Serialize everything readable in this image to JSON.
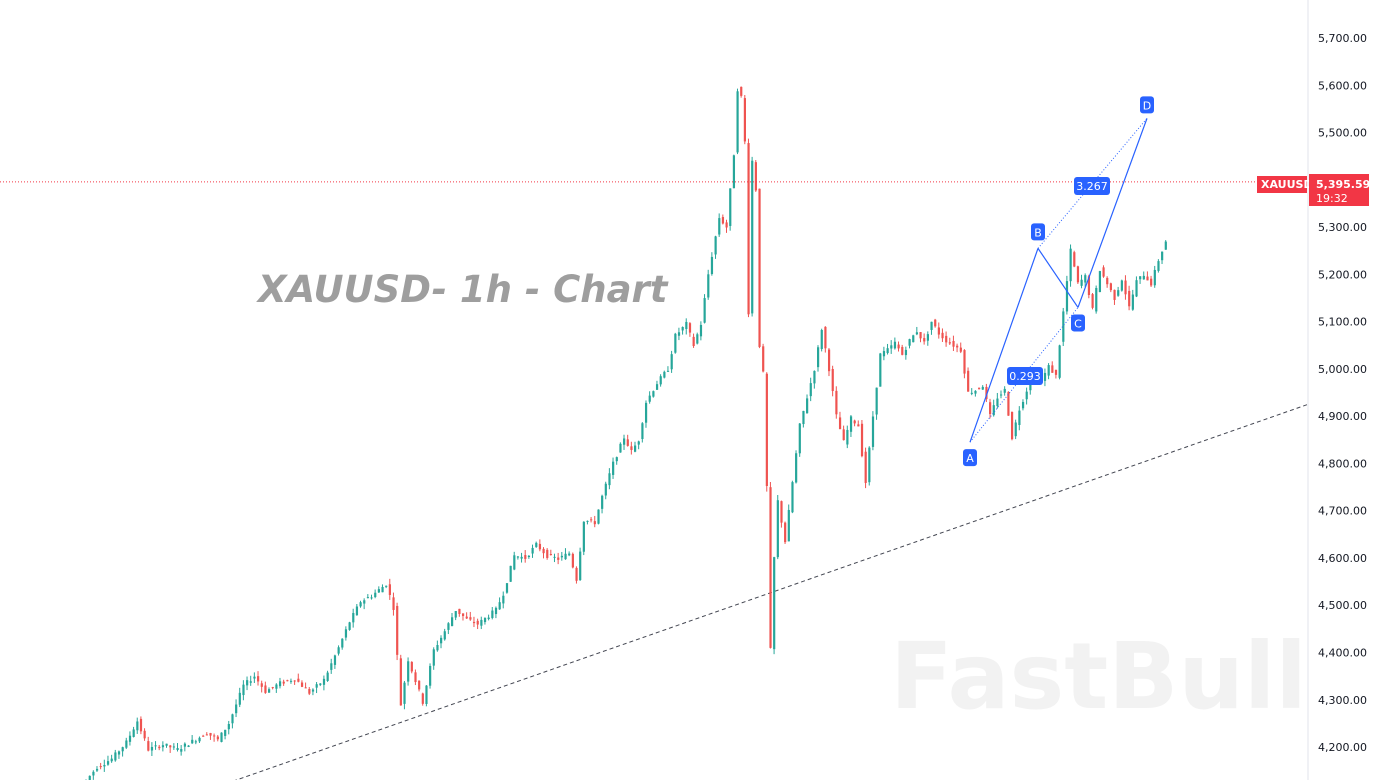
{
  "title": "XAUUSD- 1h - Chart",
  "watermark": "FastBull",
  "symbol": "XAUUSD",
  "current_price": "5,395.59",
  "countdown": "19:32",
  "colors": {
    "up": "#26a69a",
    "down": "#ef5350",
    "pattern": "#2962ff",
    "price_tag": "#f23645",
    "trendline": "#434651"
  },
  "y_axis": {
    "ticks": [
      "4,200.00",
      "4,300.00",
      "4,400.00",
      "4,500.00",
      "4,600.00",
      "4,700.00",
      "4,800.00",
      "4,900.00",
      "5,000.00",
      "5,100.00",
      "5,200.00",
      "5,300.00",
      "5,500.00",
      "5,600.00",
      "5,700.00"
    ],
    "tick_values": [
      4200,
      4300,
      4400,
      4500,
      4600,
      4700,
      4800,
      4900,
      5000,
      5100,
      5200,
      5300,
      5500,
      5600,
      5700
    ]
  },
  "chart_data": {
    "type": "candlestick",
    "title": "XAUUSD- 1h - Chart",
    "ylim": [
      4135,
      5785
    ],
    "grid": false,
    "price_line": 5395.59,
    "price_path": [
      [
        0,
        4120
      ],
      [
        4,
        4158
      ],
      [
        8,
        4175
      ],
      [
        12,
        4210
      ],
      [
        15,
        4255
      ],
      [
        18,
        4195
      ],
      [
        22,
        4205
      ],
      [
        26,
        4195
      ],
      [
        30,
        4212
      ],
      [
        34,
        4230
      ],
      [
        37,
        4215
      ],
      [
        40,
        4250
      ],
      [
        44,
        4330
      ],
      [
        47,
        4350
      ],
      [
        50,
        4318
      ],
      [
        54,
        4335
      ],
      [
        58,
        4345
      ],
      [
        62,
        4315
      ],
      [
        66,
        4342
      ],
      [
        70,
        4410
      ],
      [
        73,
        4465
      ],
      [
        76,
        4508
      ],
      [
        79,
        4520
      ],
      [
        83,
        4545
      ],
      [
        85,
        4495
      ],
      [
        87,
        4290
      ],
      [
        89,
        4385
      ],
      [
        91,
        4340
      ],
      [
        93,
        4295
      ],
      [
        96,
        4405
      ],
      [
        99,
        4445
      ],
      [
        102,
        4490
      ],
      [
        105,
        4470
      ],
      [
        108,
        4460
      ],
      [
        111,
        4478
      ],
      [
        113,
        4490
      ],
      [
        115,
        4525
      ],
      [
        118,
        4605
      ],
      [
        121,
        4600
      ],
      [
        124,
        4628
      ],
      [
        127,
        4605
      ],
      [
        130,
        4598
      ],
      [
        133,
        4610
      ],
      [
        135,
        4555
      ],
      [
        137,
        4680
      ],
      [
        140,
        4675
      ],
      [
        142,
        4730
      ],
      [
        145,
        4800
      ],
      [
        148,
        4855
      ],
      [
        150,
        4825
      ],
      [
        152,
        4850
      ],
      [
        154,
        4930
      ],
      [
        157,
        4970
      ],
      [
        160,
        5000
      ],
      [
        162,
        5070
      ],
      [
        165,
        5095
      ],
      [
        167,
        5050
      ],
      [
        169,
        5095
      ],
      [
        171,
        5200
      ],
      [
        174,
        5320
      ],
      [
        176,
        5300
      ],
      [
        178,
        5455
      ],
      [
        179,
        5592
      ],
      [
        180,
        5575
      ],
      [
        181,
        5480
      ],
      [
        182,
        5120
      ],
      [
        183,
        5440
      ],
      [
        184,
        5380
      ],
      [
        185,
        5050
      ],
      [
        186,
        4990
      ],
      [
        187,
        4750
      ],
      [
        188,
        4405
      ],
      [
        189,
        4600
      ],
      [
        190,
        4720
      ],
      [
        192,
        4635
      ],
      [
        194,
        4760
      ],
      [
        196,
        4880
      ],
      [
        198,
        4940
      ],
      [
        200,
        5000
      ],
      [
        202,
        5085
      ],
      [
        204,
        5000
      ],
      [
        206,
        4900
      ],
      [
        208,
        4845
      ],
      [
        210,
        4895
      ],
      [
        212,
        4880
      ],
      [
        214,
        4760
      ],
      [
        216,
        4900
      ],
      [
        218,
        5030
      ],
      [
        220,
        5040
      ],
      [
        222,
        5055
      ],
      [
        224,
        5030
      ],
      [
        226,
        5060
      ],
      [
        228,
        5080
      ],
      [
        230,
        5055
      ],
      [
        232,
        5100
      ],
      [
        234,
        5075
      ],
      [
        236,
        5060
      ],
      [
        238,
        5050
      ],
      [
        240,
        5040
      ],
      [
        242,
        4950
      ],
      [
        244,
        4955
      ],
      [
        246,
        4965
      ],
      [
        248,
        4900
      ],
      [
        250,
        4940
      ],
      [
        252,
        4955
      ],
      [
        254,
        4855
      ],
      [
        256,
        4915
      ],
      [
        258,
        4955
      ],
      [
        260,
        4985
      ],
      [
        262,
        4975
      ],
      [
        264,
        5005
      ],
      [
        266,
        4985
      ],
      [
        268,
        5120
      ],
      [
        270,
        5250
      ],
      [
        272,
        5180
      ],
      [
        274,
        5195
      ],
      [
        276,
        5125
      ],
      [
        278,
        5210
      ],
      [
        280,
        5180
      ],
      [
        282,
        5150
      ],
      [
        284,
        5190
      ],
      [
        286,
        5130
      ],
      [
        288,
        5185
      ],
      [
        290,
        5200
      ],
      [
        292,
        5180
      ],
      [
        294,
        5230
      ],
      [
        296,
        5270
      ]
    ],
    "harmonic_pattern": {
      "points": [
        {
          "label": "A",
          "price": 4845
        },
        {
          "label": "B",
          "price": 5255
        },
        {
          "label": "C",
          "price": 5130
        },
        {
          "label": "D",
          "price": 5530
        }
      ],
      "ratios": [
        "0.293",
        "3.267"
      ]
    },
    "trendline": {
      "from_price": 4135,
      "to_price": 4925
    }
  }
}
